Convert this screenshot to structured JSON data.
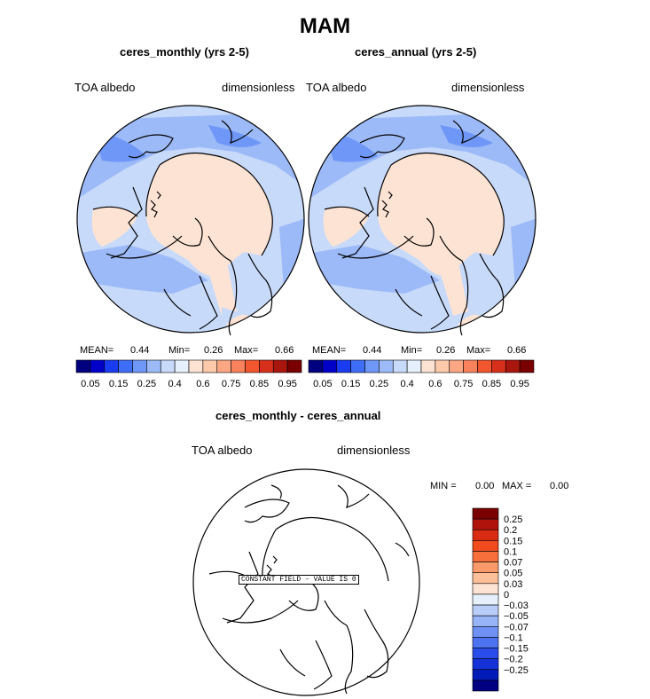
{
  "page_title": "MAM",
  "panels": [
    {
      "title": "ceres_monthly (yrs 2-5)",
      "variable": "TOA albedo",
      "units": "dimensionless",
      "stats": {
        "mean_label": "MEAN=",
        "mean": "0.44",
        "min_label": "Min=",
        "min": "0.26",
        "max_label": "Max=",
        "max": "0.66"
      }
    },
    {
      "title": "ceres_annual (yrs 2-5)",
      "variable": "TOA albedo",
      "units": "dimensionless",
      "stats": {
        "mean_label": "MEAN=",
        "mean": "0.44",
        "min_label": "Min=",
        "min": "0.26",
        "max_label": "Max=",
        "max": "0.66"
      }
    }
  ],
  "colorbar_top": {
    "colors": [
      "#00007f",
      "#0000c8",
      "#1a3cf0",
      "#3e6ef5",
      "#6e97f7",
      "#9dbaf8",
      "#c8dafa",
      "#e6f0fc",
      "#fde3d3",
      "#fcc9ab",
      "#fca784",
      "#f9825d",
      "#f2562f",
      "#d6301a",
      "#a8160e",
      "#7a0000"
    ],
    "labels": [
      "0.05",
      "0.15",
      "0.25",
      "0.4",
      "0.6",
      "0.75",
      "0.85",
      "0.95"
    ]
  },
  "diff_panel": {
    "title": "ceres_monthly - ceres_annual",
    "variable": "TOA albedo",
    "units": "dimensionless",
    "min_label": "MIN =",
    "min": "0.00",
    "max_label": "MAX =",
    "max": "0.00",
    "constant_field_label": "CONSTANT FIELD - VALUE IS 0"
  },
  "colorbar_diff": {
    "colors": [
      "#7a0000",
      "#b0120c",
      "#d92a14",
      "#f04a1e",
      "#f7703c",
      "#f99a6a",
      "#fbbf9a",
      "#fde3d3",
      "#e6f0fc",
      "#b8cdf8",
      "#97b4f6",
      "#6e91f3",
      "#4d72f0",
      "#2a4cea",
      "#1531d8",
      "#001bb8",
      "#000080"
    ],
    "labels": [
      "0.25",
      "0.2",
      "0.15",
      "0.1",
      "0.07",
      "0.05",
      "0.03",
      "0",
      "−0.03",
      "−0.05",
      "−0.07",
      "−0.1",
      "−0.15",
      "−0.2",
      "−0.25"
    ]
  },
  "map_colors": {
    "ocean_light": "#c8dafa",
    "mid_blue": "#9dbaf8",
    "dark_blue": "#6e97f7",
    "ice": "#fde3d3",
    "coast": "#000000"
  }
}
